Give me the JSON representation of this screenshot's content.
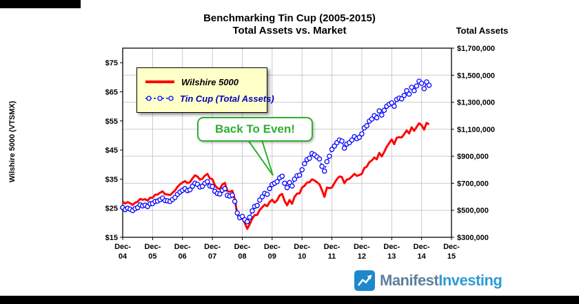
{
  "frame": {
    "bar_color": "#000000"
  },
  "logo": {
    "text_primary": "Manifest",
    "text_secondary": "Investing",
    "color_primary": "#5f7e9e",
    "color_secondary": "#2e9bd6",
    "icon_color": "#1e88cc"
  },
  "chart_data": {
    "type": "line",
    "title_line1": "Benchmarking Tin Cup (2005-2015)",
    "title_line2": "Total Assets vs. Market",
    "annotation": {
      "text": "Back To Even!",
      "color": "#2fae2f"
    },
    "legend": {
      "background": "#ffffc8"
    },
    "left_axis": {
      "title": "Wilshire 5000 (VTSMX)",
      "min": 15,
      "max": 80,
      "ticks": [
        {
          "v": 75,
          "label": "$75"
        },
        {
          "v": 65,
          "label": "$65"
        },
        {
          "v": 55,
          "label": "$55"
        },
        {
          "v": 45,
          "label": "$45"
        },
        {
          "v": 35,
          "label": "$35"
        },
        {
          "v": 25,
          "label": "$25"
        },
        {
          "v": 15,
          "label": "$15"
        }
      ]
    },
    "right_axis": {
      "title": "Total Assets",
      "min": 300000,
      "max": 1700000,
      "ticks": [
        {
          "v": 1700000,
          "label": "$1,700,000"
        },
        {
          "v": 1500000,
          "label": "$1,500,000"
        },
        {
          "v": 1300000,
          "label": "$1,300,000"
        },
        {
          "v": 1100000,
          "label": "$1,100,000"
        },
        {
          "v": 900000,
          "label": "$900,000"
        },
        {
          "v": 700000,
          "label": "$700,000"
        },
        {
          "v": 500000,
          "label": "$500,000"
        },
        {
          "v": 300000,
          "label": "$300,000"
        }
      ]
    },
    "x_axis": {
      "tick_prefix": "Dec-",
      "ticks": [
        "04",
        "05",
        "06",
        "07",
        "08",
        "09",
        "10",
        "11",
        "12",
        "13",
        "14",
        "15"
      ],
      "total_months": 132,
      "start_label": "Dec-04"
    },
    "series": [
      {
        "name": "Wilshire 5000",
        "color": "#ff0000",
        "legend_text_color": "#000000",
        "axis": "left",
        "style": "solid",
        "values": [
          27.3,
          26.6,
          27.1,
          26.7,
          26.1,
          26.9,
          27.2,
          28.2,
          27.9,
          28.1,
          27.6,
          28.6,
          28.6,
          29.6,
          29.7,
          30.3,
          30.8,
          29.8,
          29.7,
          29.5,
          30.3,
          31.1,
          32.3,
          33.2,
          33.8,
          34.3,
          33.6,
          33.9,
          35.2,
          36.3,
          35.9,
          34.8,
          35.1,
          36.2,
          36.8,
          35.2,
          35.0,
          32.9,
          31.9,
          31.6,
          33.1,
          33.7,
          30.9,
          30.6,
          31.0,
          28.2,
          23.0,
          21.2,
          21.7,
          19.9,
          17.9,
          19.5,
          21.4,
          22.6,
          22.7,
          24.4,
          25.3,
          26.2,
          25.7,
          27.1,
          27.9,
          26.9,
          27.7,
          29.4,
          29.9,
          27.5,
          26.0,
          27.8,
          26.5,
          28.9,
          30.0,
          30.1,
          32.1,
          32.7,
          33.8,
          33.9,
          34.9,
          34.5,
          33.9,
          33.2,
          31.2,
          28.9,
          32.1,
          31.9,
          32.1,
          33.6,
          35.0,
          35.9,
          35.7,
          33.6,
          34.8,
          35.1,
          35.9,
          36.8,
          36.1,
          36.4,
          36.8,
          38.8,
          39.3,
          40.8,
          41.4,
          42.4,
          41.8,
          44.0,
          42.8,
          44.3,
          46.1,
          47.4,
          48.6,
          47.0,
          49.2,
          49.4,
          49.3,
          50.4,
          51.7,
          50.7,
          52.8,
          51.6,
          52.9,
          54.2,
          53.5,
          52.0,
          54.3,
          53.8
        ]
      },
      {
        "name": "Tin Cup (Total Assets)",
        "color": "#0000ff",
        "legend_text_color": "#0000bb",
        "axis": "right",
        "style": "dashed-markers",
        "values": [
          520000,
          505000,
          515000,
          508000,
          498000,
          512000,
          520000,
          540000,
          532000,
          538000,
          528000,
          548000,
          550000,
          565000,
          568000,
          578000,
          590000,
          572000,
          570000,
          565000,
          580000,
          595000,
          618000,
          635000,
          648000,
          660000,
          645000,
          652000,
          678000,
          700000,
          692000,
          672000,
          678000,
          700000,
          712000,
          680000,
          675000,
          640000,
          625000,
          620000,
          648000,
          660000,
          610000,
          605000,
          612000,
          565000,
          480000,
          445000,
          455000,
          430000,
          415000,
          448000,
          495000,
          528000,
          535000,
          575000,
          600000,
          625000,
          618000,
          660000,
          690000,
          700000,
          712000,
          740000,
          752000,
          700000,
          668000,
          705000,
          680000,
          730000,
          755000,
          760000,
          800000,
          845000,
          875000,
          885000,
          920000,
          910000,
          895000,
          880000,
          825000,
          790000,
          860000,
          900000,
          950000,
          975000,
          1000000,
          1020000,
          1012000,
          960000,
          990000,
          1000000,
          1020000,
          1045000,
          1030000,
          1040000,
          1065000,
          1110000,
          1125000,
          1160000,
          1175000,
          1200000,
          1185000,
          1235000,
          1205000,
          1240000,
          1270000,
          1285000,
          1295000,
          1270000,
          1320000,
          1330000,
          1325000,
          1350000,
          1385000,
          1360000,
          1410000,
          1385000,
          1420000,
          1455000,
          1440000,
          1400000,
          1450000,
          1425000
        ]
      }
    ]
  }
}
